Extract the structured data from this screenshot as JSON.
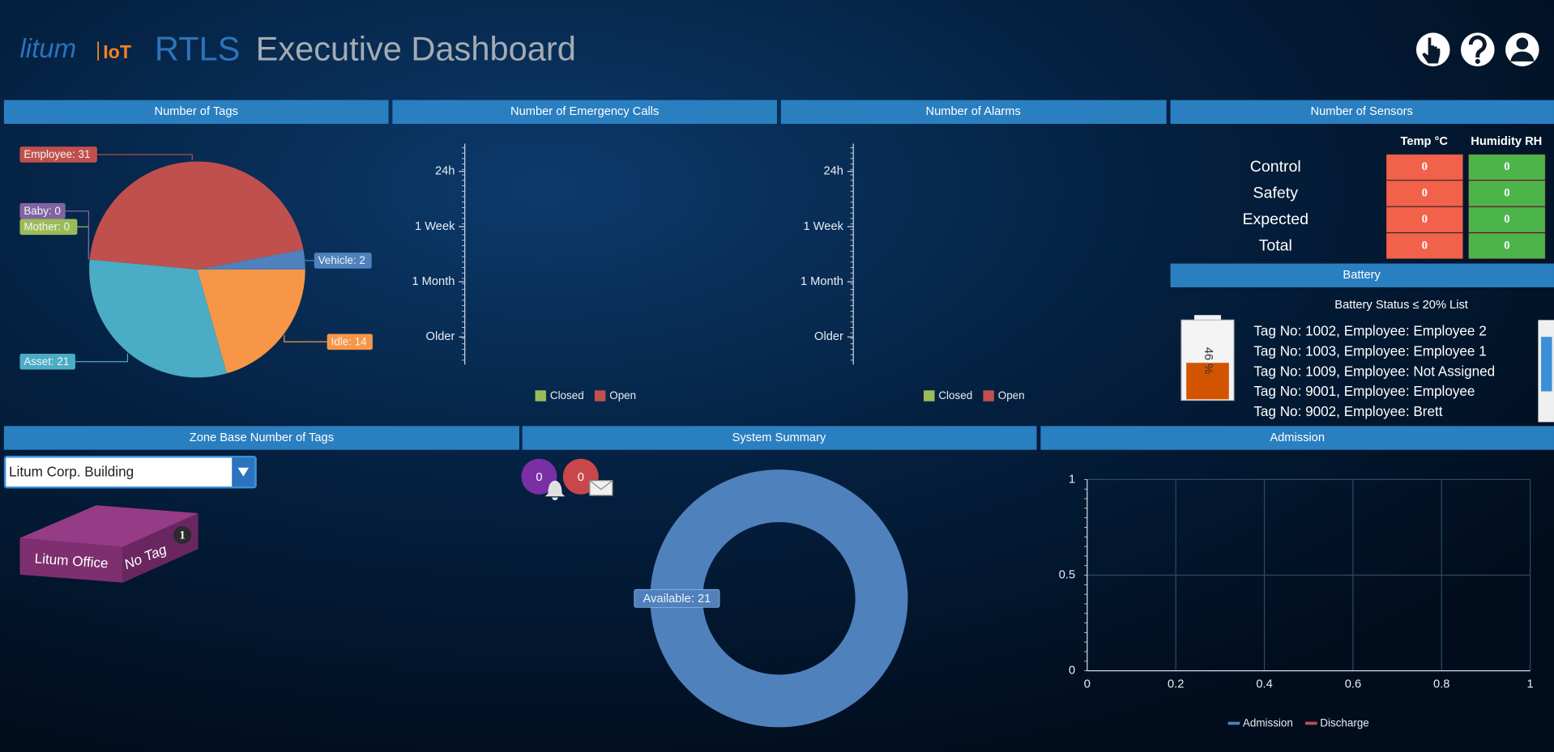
{
  "header": {
    "logo": "litum",
    "logo_sub": "IoT",
    "app": "RTLS",
    "title": "Executive Dashboard"
  },
  "tags_panel": {
    "title": "Number of Tags",
    "chart": {
      "type": "pie",
      "categories": [
        "Idle",
        "Asset",
        "Mother",
        "Baby",
        "Employee",
        "Vehicle"
      ],
      "values": [
        14,
        21,
        0,
        0,
        31,
        2
      ],
      "value_labels": [
        "Idle: 14",
        "Asset: 21",
        "Mother: 0",
        "Baby: 0",
        "Employee: 31",
        "Vehicle: 2"
      ],
      "colors": [
        "#f79646",
        "#4bacc6",
        "#9bbb59",
        "#8064a2",
        "#c0504d",
        "#4f81bd"
      ]
    }
  },
  "emergency_panel": {
    "title": "Number of Emergency Calls",
    "chart": {
      "type": "bar",
      "categories": [
        "24h",
        "1 Week",
        "1 Month",
        "Older"
      ],
      "series": [
        {
          "name": "Closed",
          "color": "#9bbb59",
          "values": [
            0,
            0,
            0,
            0
          ]
        },
        {
          "name": "Open",
          "color": "#c0504d",
          "values": [
            0,
            0,
            0,
            0
          ]
        }
      ]
    }
  },
  "alarms_panel": {
    "title": "Number of Alarms",
    "chart": {
      "type": "bar",
      "categories": [
        "24h",
        "1 Week",
        "1 Month",
        "Older"
      ],
      "series": [
        {
          "name": "Closed",
          "color": "#9bbb59",
          "values": [
            0,
            0,
            0,
            0
          ]
        },
        {
          "name": "Open",
          "color": "#c0504d",
          "values": [
            0,
            0,
            0,
            0
          ]
        }
      ]
    }
  },
  "sensors_panel": {
    "title": "Number of Sensors",
    "columns": [
      "Temp °C",
      "Humidity RH"
    ],
    "rows": [
      {
        "label": "Control",
        "values": [
          0,
          0
        ]
      },
      {
        "label": "Safety",
        "values": [
          0,
          0
        ]
      },
      {
        "label": "Expected",
        "values": [
          0,
          0
        ]
      },
      {
        "label": "Total",
        "values": [
          0,
          0
        ]
      }
    ]
  },
  "battery_panel": {
    "title": "Battery",
    "subtitle": "Battery Status ≤ 20% List",
    "level": 46,
    "level_label": "46 %",
    "items": [
      "Tag No: 1002, Employee: Employee 2",
      "Tag No: 1003, Employee: Employee 1",
      "Tag No: 1009, Employee: Not Assigned",
      "Tag No: 9001, Employee: Employee",
      "Tag No: 9002, Employee: Brett"
    ]
  },
  "zone_panel": {
    "title": "Zone Base Number of Tags",
    "select": "Litum Corp. Building",
    "zones": [
      {
        "name": "Litum Office",
        "status": "No Tag",
        "count": 1
      }
    ]
  },
  "summary_panel": {
    "title": "System Summary",
    "alerts": [
      0,
      0
    ],
    "chart": {
      "type": "donut",
      "categories": [
        "Available"
      ],
      "values": [
        21
      ],
      "value_labels": [
        "Available: 21"
      ],
      "colors": [
        "#4f81bd"
      ]
    }
  },
  "admission_panel": {
    "title": "Admission",
    "chart": {
      "type": "line",
      "x": [],
      "series": [
        {
          "name": "Admission",
          "color": "#4f81bd",
          "values": []
        },
        {
          "name": "Discharge",
          "color": "#c0504d",
          "values": []
        }
      ],
      "xlim": [
        0,
        1
      ],
      "xticks": [
        0,
        0.2,
        0.4,
        0.6,
        0.8,
        1
      ],
      "ylim": [
        0,
        1
      ],
      "yticks": [
        0,
        0.5,
        1
      ],
      "grid": true
    }
  }
}
